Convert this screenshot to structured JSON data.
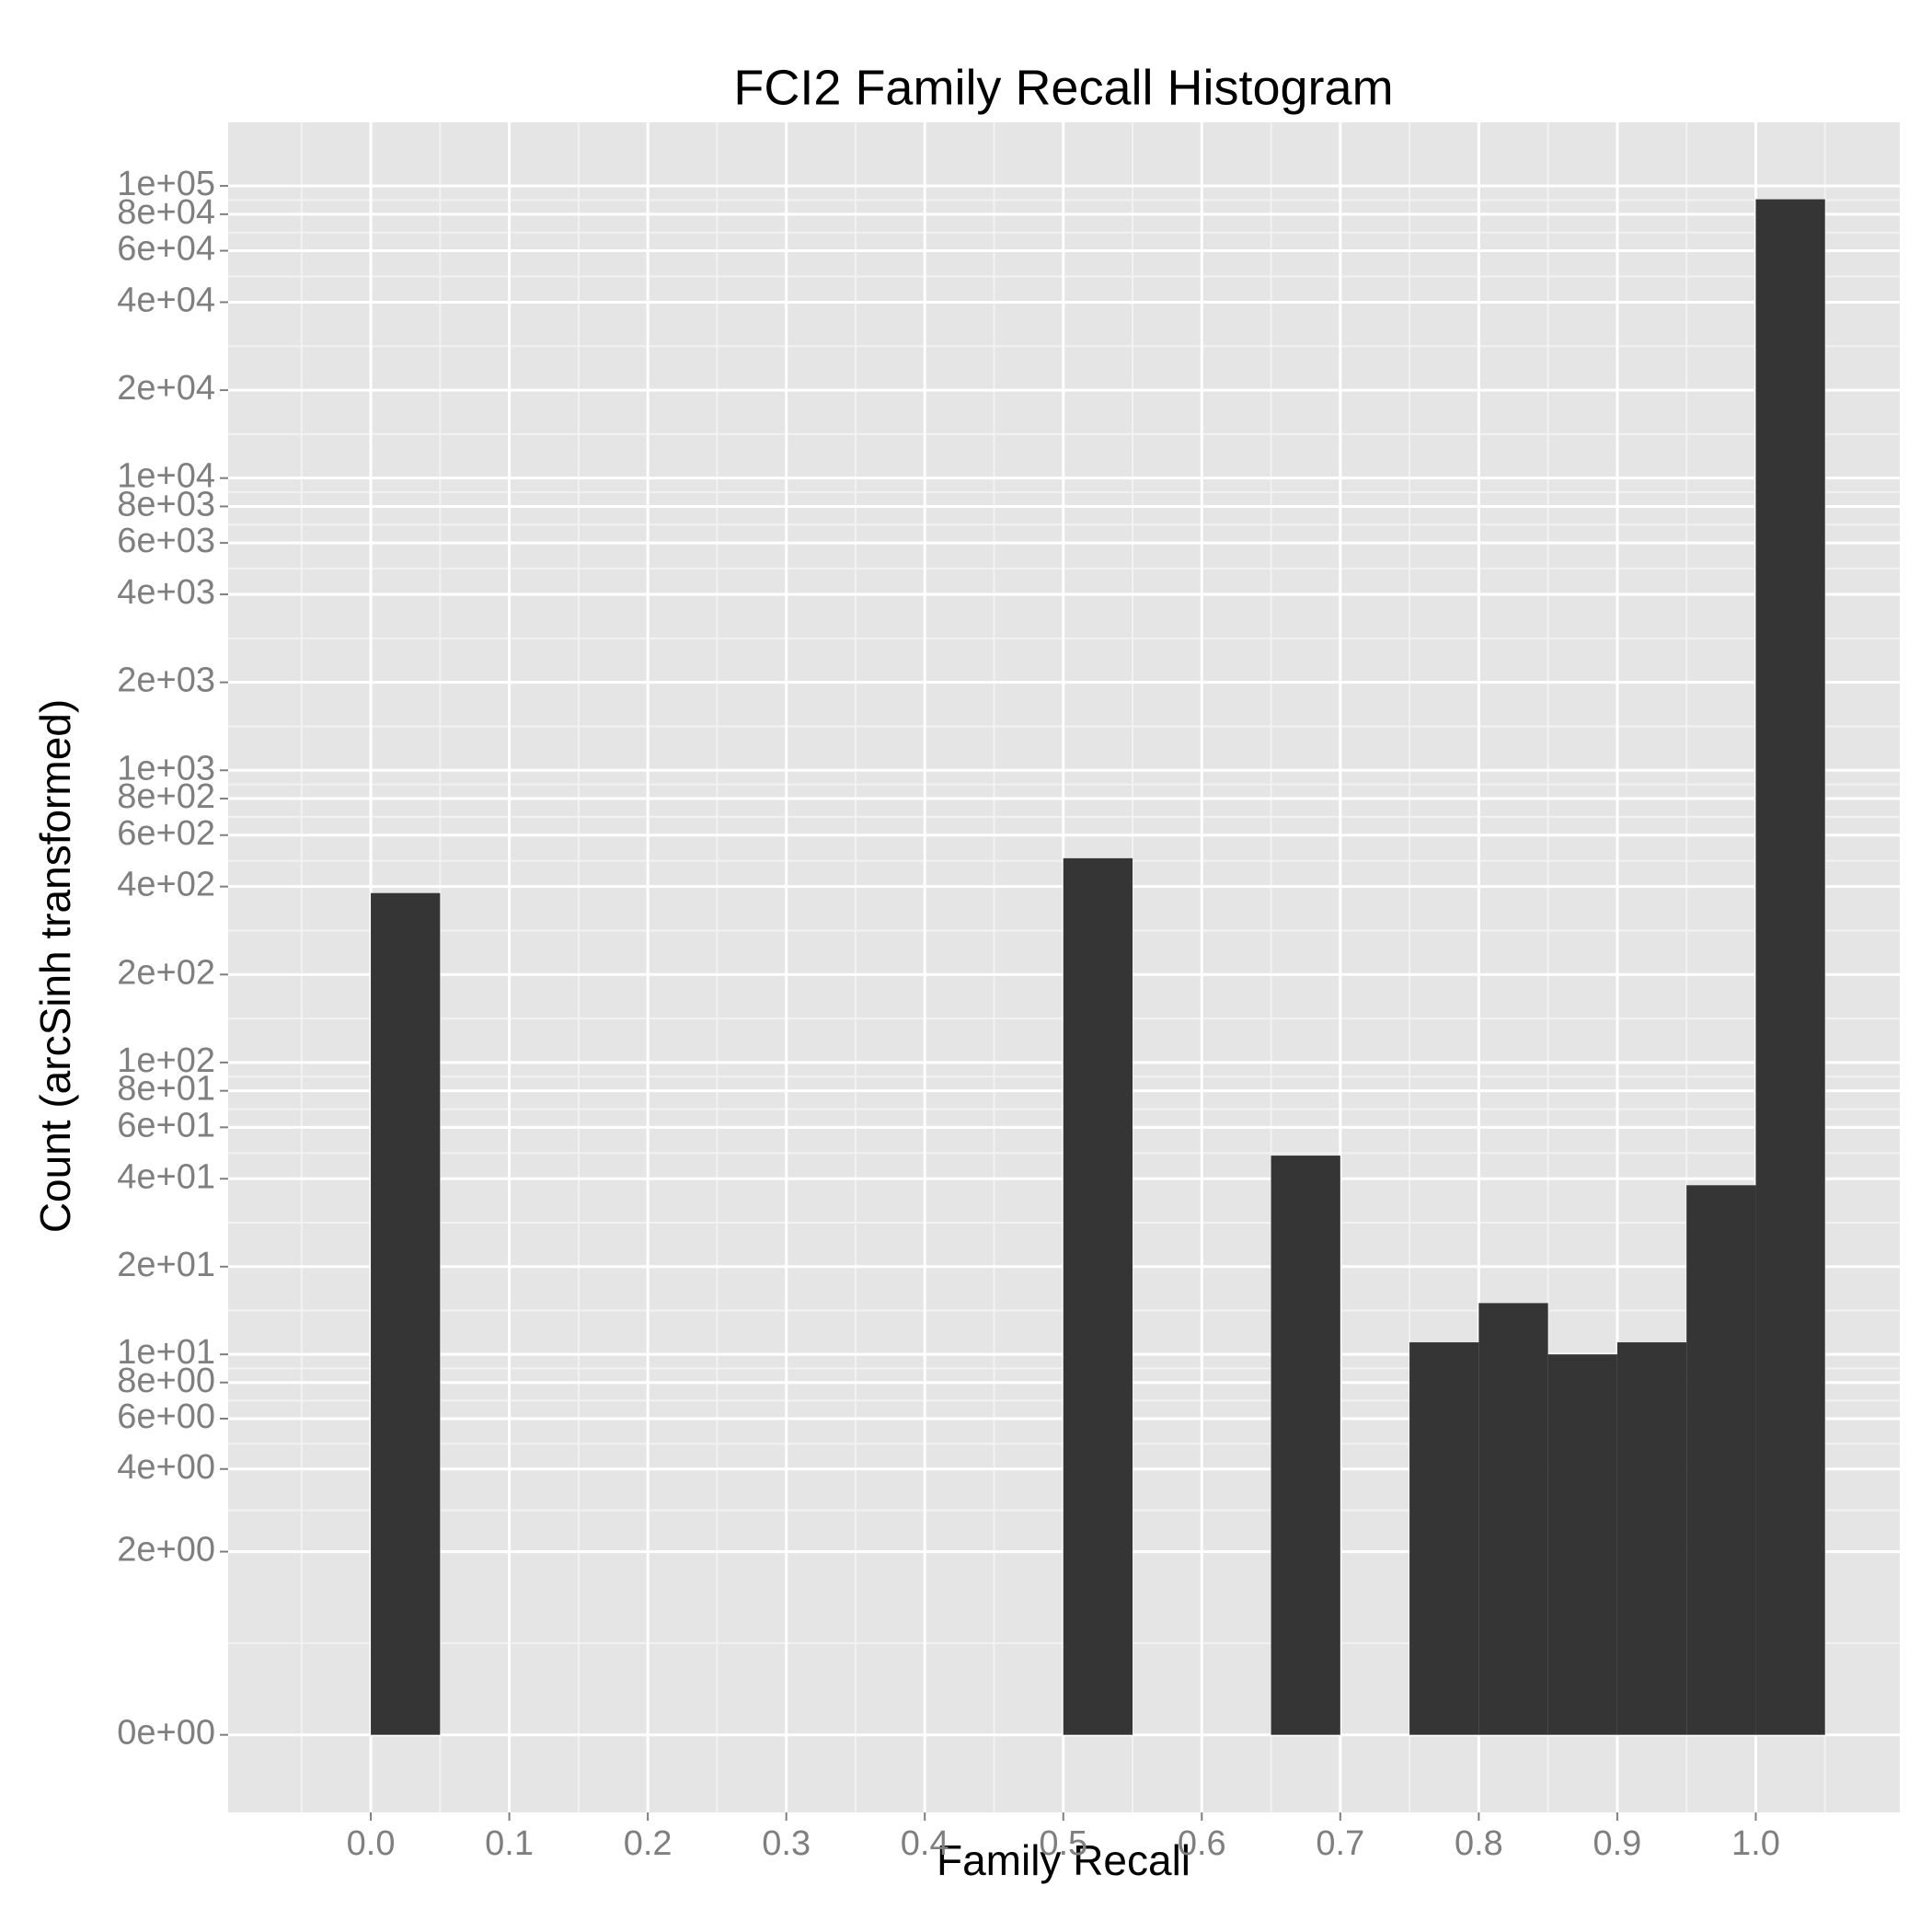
{
  "chart_data": {
    "type": "histogram",
    "title": "FCI2 Family Recall Histogram",
    "xlabel": "Family Recall",
    "ylabel": "Count (arcSinh transformed)",
    "bins": [
      0,
      0.05,
      0.1,
      0.15,
      0.2,
      0.25,
      0.3,
      0.35,
      0.4,
      0.45,
      0.5,
      0.55,
      0.6,
      0.65,
      0.7,
      0.75,
      0.8,
      0.85,
      0.9,
      0.95,
      1.0,
      1.05
    ],
    "values": [
      380,
      0,
      0,
      0,
      0,
      0,
      0,
      0,
      0,
      0,
      500,
      0,
      0,
      48,
      0,
      11,
      15,
      10,
      11,
      38,
      90000
    ],
    "color": "#353535",
    "background": "#e5e5e5",
    "grid": true,
    "yscale": "asinh",
    "xlim": [
      -0.103,
      1.104
    ],
    "ylim": [
      -0.65,
      165000
    ],
    "xticks": [
      {
        "value": 0,
        "label": "0.0"
      },
      0.1,
      0.2,
      0.3,
      0.4,
      0.5,
      0.6,
      0.7,
      0.8,
      0.9,
      {
        "value": 1,
        "label": "1.0"
      }
    ],
    "yticks": [
      {
        "value": 0,
        "label": "0e+00"
      },
      {
        "value": 2,
        "label": "2e+00"
      },
      {
        "value": 4,
        "label": "4e+00"
      },
      {
        "value": 6,
        "label": "6e+00"
      },
      {
        "value": 8,
        "label": "8e+00"
      },
      {
        "value": 10,
        "label": "1e+01"
      },
      {
        "value": 20,
        "label": "2e+01"
      },
      {
        "value": 40,
        "label": "4e+01"
      },
      {
        "value": 60,
        "label": "6e+01"
      },
      {
        "value": 80,
        "label": "8e+01"
      },
      {
        "value": 100,
        "label": "1e+02"
      },
      {
        "value": 200,
        "label": "2e+02"
      },
      {
        "value": 400,
        "label": "4e+02"
      },
      {
        "value": 600,
        "label": "6e+02"
      },
      {
        "value": 800,
        "label": "8e+02"
      },
      {
        "value": 1000,
        "label": "1e+03"
      },
      {
        "value": 2000,
        "label": "2e+03"
      },
      {
        "value": 4000,
        "label": "4e+03"
      },
      {
        "value": 6000,
        "label": "6e+03"
      },
      {
        "value": 8000,
        "label": "8e+03"
      },
      {
        "value": 10000,
        "label": "1e+04"
      },
      {
        "value": 20000,
        "label": "2e+04"
      },
      {
        "value": 40000,
        "label": "4e+04"
      },
      {
        "value": 60000,
        "label": "6e+04"
      },
      {
        "value": 80000,
        "label": "8e+04"
      },
      {
        "value": 100000,
        "label": "1e+05"
      }
    ]
  }
}
